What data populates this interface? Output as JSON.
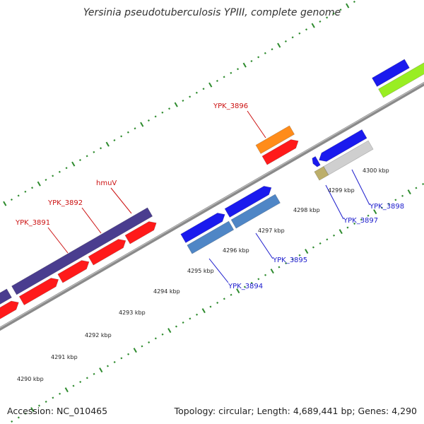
{
  "title": "Yersinia pseudotuberculosis YPIII, complete genome",
  "footer": {
    "accession": "Accession: NC_010465",
    "summary": "Topology: circular; Length: 4,689,441 bp; Genes: 4,290"
  },
  "colors": {
    "backbone": "#8a8a8a",
    "tick_major": "#2e8b2e",
    "tick_minor": "#2e8b2e",
    "forward_label": "#cc1111",
    "reverse_label": "#1a1acc",
    "cds_red": "#ff1a1a",
    "cds_purple": "#4a3d8f",
    "cds_blue": "#1a1aee",
    "cds_steelblue": "#4f86c6",
    "cds_orange": "#ff8c1a",
    "cds_lightgray": "#cfcfcf",
    "cds_khaki": "#bcae6a",
    "cds_lime": "#99ee22"
  },
  "kbp_labels": [
    "4290 kbp",
    "4291 kbp",
    "4292 kbp",
    "4293 kbp",
    "4294 kbp",
    "4295 kbp",
    "4296 kbp",
    "4297 kbp",
    "4298 kbp",
    "4299 kbp",
    "4300 kbp"
  ],
  "gene_labels": {
    "ypk3891": "YPK_3891",
    "ypk3892": "YPK_3892",
    "hmuv": "hmuV",
    "ypk3896": "YPK_3896",
    "ypk3894": "YPK_3894",
    "ypk3895": "YPK_3895",
    "ypk3897": "YPK_3897",
    "ypk3898": "YPK_3898"
  }
}
